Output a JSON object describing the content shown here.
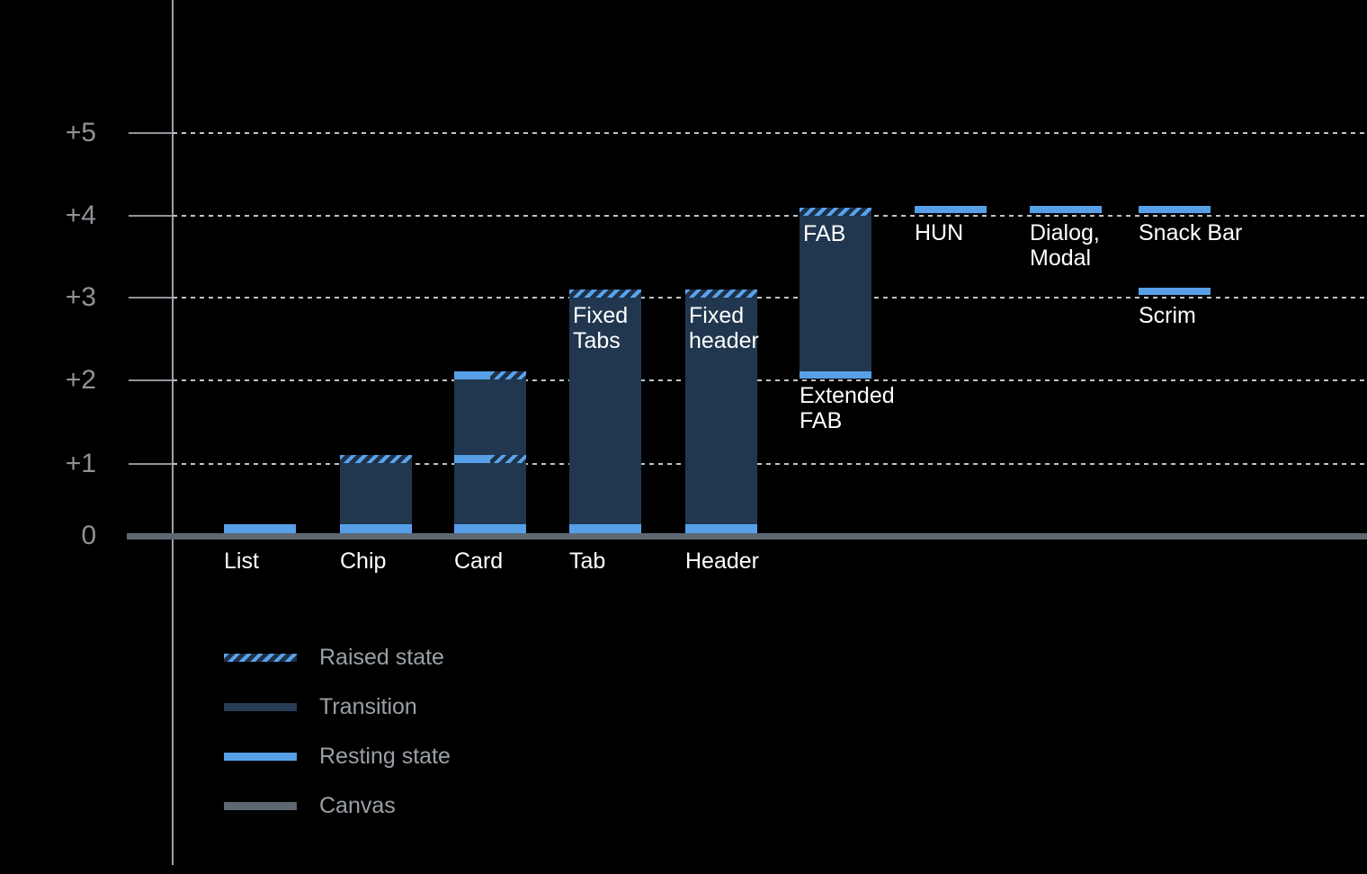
{
  "colors": {
    "background": "#000000",
    "resting_state": "#57A0E8",
    "transition": "#21374F",
    "raised_stripe": "#5AA2EA",
    "canvas": "#5E6873",
    "gridline": "#C0C3C7",
    "axis_line": "#9CA2A8",
    "axis_label": "#8E9297",
    "bar_label": "#FFFFFF",
    "legend_text": "#9AA0A6"
  },
  "axis": {
    "labels": [
      "+5",
      "+4",
      "+3",
      "+2",
      "+1",
      "0"
    ]
  },
  "bars": {
    "list": {
      "label": "List"
    },
    "chip": {
      "label": "Chip"
    },
    "card": {
      "label": "Card"
    },
    "tab": {
      "label": "Tab",
      "inner_label": "Fixed Tabs"
    },
    "header": {
      "label": "Header",
      "inner_label": "Fixed header"
    },
    "extended_fab": {
      "label": "Extended FAB",
      "inner_label": "FAB"
    },
    "hun": {
      "label": "HUN"
    },
    "dialog_modal": {
      "label": "Dialog, Modal"
    },
    "snack_bar": {
      "label": "Snack Bar"
    },
    "scrim": {
      "label": "Scrim"
    }
  },
  "legend": {
    "raised": "Raised state",
    "transition": "Transition",
    "resting": "Resting state",
    "canvas": "Canvas"
  },
  "chart_data": {
    "type": "bar",
    "title": "",
    "xlabel": "",
    "ylabel": "",
    "y_axis": {
      "ticks": [
        0,
        1,
        2,
        3,
        4,
        5
      ],
      "tick_labels": [
        "0",
        "+1",
        "+2",
        "+3",
        "+4",
        "+5"
      ],
      "gridlines": "dotted horizontal at +1 through +5, solid canvas baseline at 0"
    },
    "legend": [
      "Raised state",
      "Transition",
      "Resting state",
      "Canvas"
    ],
    "legend_position": "bottom-left",
    "components": [
      {
        "name": "List",
        "resting_elevation": 0,
        "transition_range": null,
        "raised_elevation": null
      },
      {
        "name": "Chip",
        "resting_elevation": 0,
        "transition_range": [
          0,
          1
        ],
        "raised_elevation": 1
      },
      {
        "name": "Card",
        "resting_elevation": 0,
        "intermediate_resting_and_raised": 1,
        "transition_range": [
          0,
          2
        ],
        "raised_elevation": 2
      },
      {
        "name": "Tab",
        "resting_elevation": 0,
        "transition_range": [
          0,
          3
        ],
        "raised_elevation": 3,
        "raised_label": "Fixed Tabs"
      },
      {
        "name": "Header",
        "resting_elevation": 0,
        "transition_range": [
          0,
          3
        ],
        "raised_elevation": 3,
        "raised_label": "Fixed header"
      },
      {
        "name": "Extended FAB",
        "resting_elevation": 2,
        "transition_range": [
          2,
          4
        ],
        "raised_elevation": 4,
        "raised_label": "FAB"
      },
      {
        "name": "HUN",
        "resting_elevation": 4,
        "transition_range": null,
        "raised_elevation": null
      },
      {
        "name": "Dialog, Modal",
        "resting_elevation": 4,
        "transition_range": null,
        "raised_elevation": null
      },
      {
        "name": "Snack Bar",
        "resting_elevation": 4,
        "transition_range": null,
        "raised_elevation": null
      },
      {
        "name": "Scrim",
        "resting_elevation": 3,
        "transition_range": null,
        "raised_elevation": null
      }
    ]
  }
}
